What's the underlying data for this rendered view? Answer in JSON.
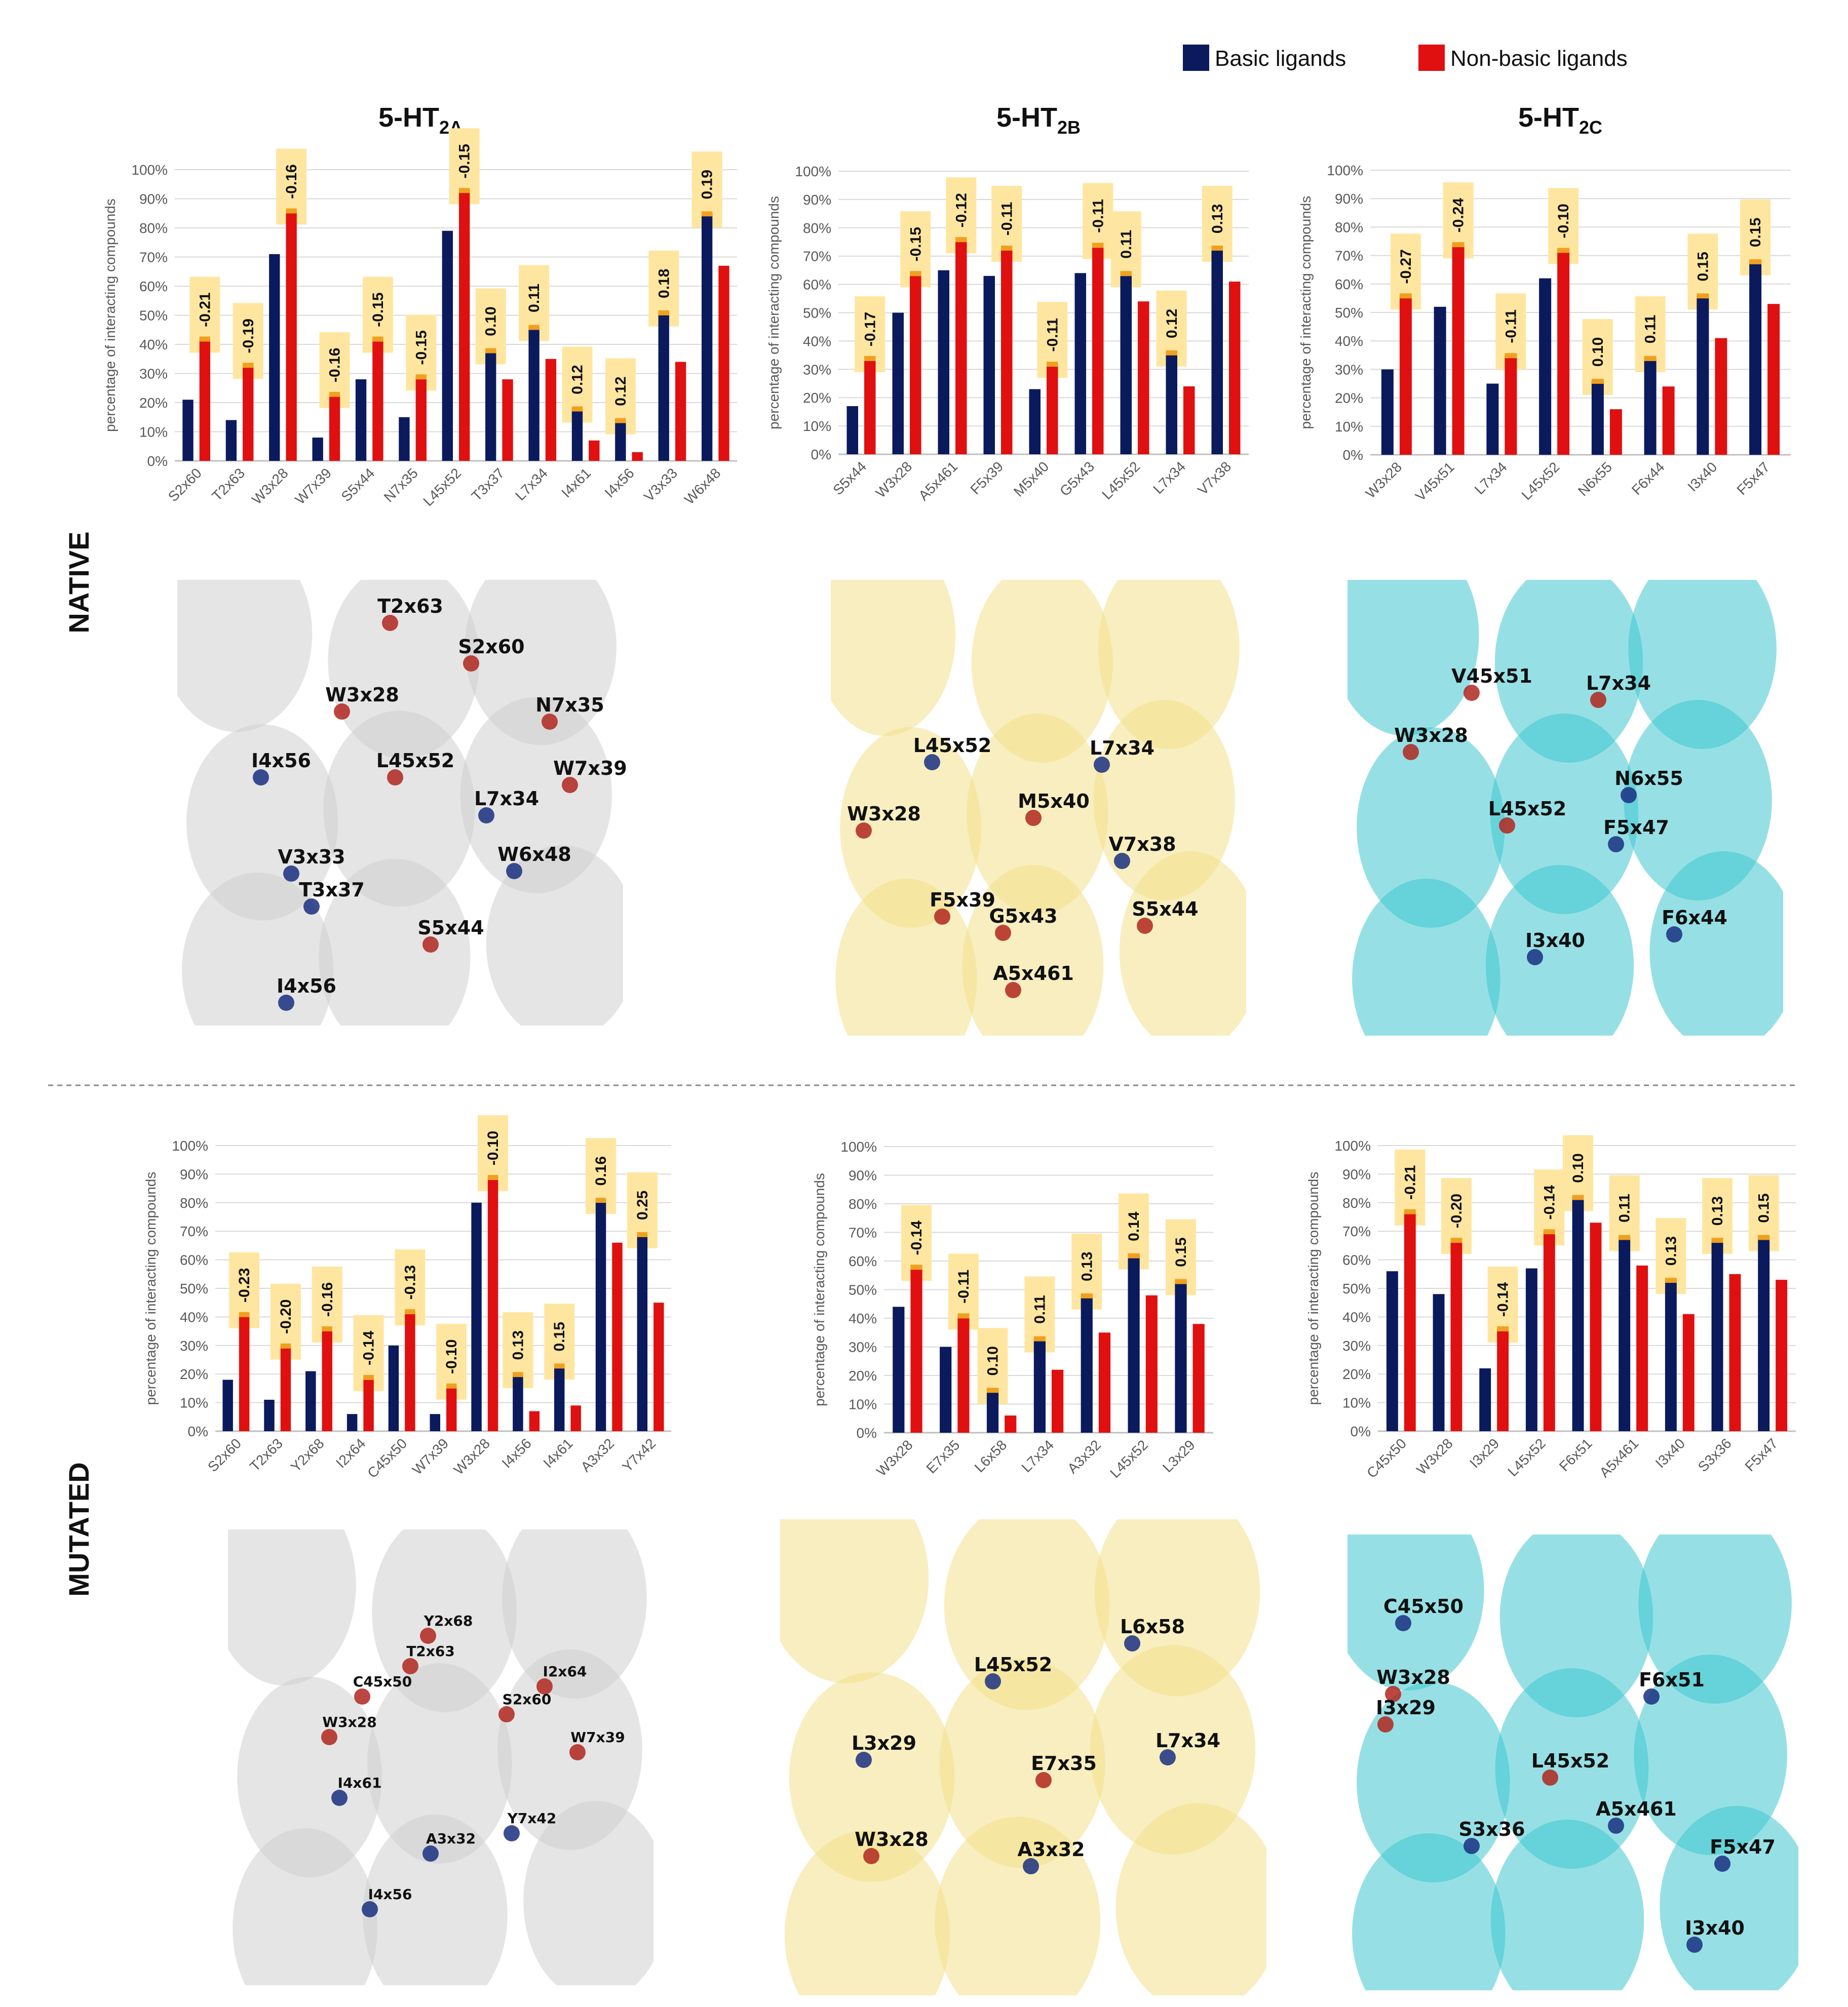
{
  "legend": {
    "basic": {
      "label": "Basic ligands",
      "color": "#0a1a5c"
    },
    "nonbasic": {
      "label": "Non-basic ligands",
      "color": "#e01010"
    }
  },
  "colors": {
    "label_box": "#ffe6a0",
    "cap": "#f0a020",
    "axis": "#bfbfbf",
    "grid": "#d9d9d9"
  },
  "row_labels": {
    "native": "NATIVE",
    "mutated": "MUTATED"
  },
  "columns": [
    {
      "title_main": "5-HT",
      "title_sub": "2A"
    },
    {
      "title_main": "5-HT",
      "title_sub": "2B"
    },
    {
      "title_main": "5-HT",
      "title_sub": "2C"
    }
  ],
  "chart_data": [
    {
      "type": "bar",
      "panel": "5-HT2A native",
      "ylabel": "percentage of interacting compounds",
      "ylim": [
        0,
        100
      ],
      "yticks": [
        "0%",
        "10%",
        "20%",
        "30%",
        "40%",
        "50%",
        "60%",
        "70%",
        "80%",
        "90%",
        "100%"
      ],
      "categories": [
        "S2x60",
        "T2x63",
        "W3x28",
        "W7x39",
        "S5x44",
        "N7x35",
        "L45x52",
        "T3x37",
        "L7x34",
        "I4x61",
        "I4x56",
        "V3x33",
        "W6x48"
      ],
      "series": [
        {
          "name": "Basic ligands",
          "values": [
            21,
            14,
            71,
            8,
            28,
            15,
            79,
            38,
            46,
            18,
            14,
            51,
            85
          ]
        },
        {
          "name": "Non-basic ligands",
          "values": [
            42,
            33,
            86,
            23,
            42,
            29,
            93,
            28,
            35,
            7,
            3,
            34,
            67
          ]
        }
      ],
      "labels": [
        "-0.21",
        "-0.19",
        "-0.16",
        "-0.16",
        "-0.15",
        "-0.15",
        "-0.15",
        "0.10",
        "0.11",
        "0.12",
        "0.12",
        "0.18",
        "0.19"
      ]
    },
    {
      "type": "bar",
      "panel": "5-HT2B native",
      "ylabel": "percentage of interacting compounds",
      "ylim": [
        0,
        100
      ],
      "yticks": [
        "0%",
        "10%",
        "20%",
        "30%",
        "40%",
        "50%",
        "60%",
        "70%",
        "80%",
        "90%",
        "100%"
      ],
      "categories": [
        "S5x44",
        "W3x28",
        "A5x461",
        "F5x39",
        "M5x40",
        "G5x43",
        "L45x52",
        "L7x34",
        "V7x38"
      ],
      "series": [
        {
          "name": "Basic ligands",
          "values": [
            17,
            50,
            65,
            63,
            23,
            64,
            64,
            36,
            73
          ]
        },
        {
          "name": "Non-basic ligands",
          "values": [
            34,
            64,
            76,
            73,
            32,
            74,
            54,
            24,
            61
          ]
        }
      ],
      "labels": [
        "-0.17",
        "-0.15",
        "-0.12",
        "-0.11",
        "-0.11",
        "-0.11",
        "0.11",
        "0.12",
        "0.13"
      ]
    },
    {
      "type": "bar",
      "panel": "5-HT2C native",
      "ylabel": "percentage of interacting compounds",
      "ylim": [
        0,
        100
      ],
      "yticks": [
        "0%",
        "10%",
        "20%",
        "30%",
        "40%",
        "50%",
        "60%",
        "70%",
        "80%",
        "90%",
        "100%"
      ],
      "categories": [
        "W3x28",
        "V45x51",
        "L7x34",
        "L45x52",
        "N6x55",
        "F6x44",
        "I3x40",
        "F5x47"
      ],
      "series": [
        {
          "name": "Basic ligands",
          "values": [
            30,
            52,
            25,
            62,
            26,
            34,
            56,
            68
          ]
        },
        {
          "name": "Non-basic ligands",
          "values": [
            56,
            74,
            35,
            72,
            16,
            24,
            41,
            53
          ]
        }
      ],
      "labels": [
        "-0.27",
        "-0.24",
        "-0.11",
        "-0.10",
        "0.10",
        "0.11",
        "0.15",
        "0.15"
      ]
    },
    {
      "type": "bar",
      "panel": "5-HT2A mutated",
      "ylabel": "percentage of interacting compounds",
      "ylim": [
        0,
        100
      ],
      "yticks": [
        "0%",
        "10%",
        "20%",
        "30%",
        "40%",
        "50%",
        "60%",
        "70%",
        "80%",
        "90%",
        "100%"
      ],
      "categories": [
        "S2x60",
        "T2x63",
        "Y2x68",
        "I2x64",
        "C45x50",
        "W7x39",
        "W3x28",
        "I4x56",
        "I4x61",
        "A3x32",
        "Y7x42"
      ],
      "series": [
        {
          "name": "Basic ligands",
          "values": [
            18,
            11,
            21,
            6,
            30,
            6,
            80,
            20,
            23,
            81,
            69
          ]
        },
        {
          "name": "Non-basic ligands",
          "values": [
            41,
            30,
            36,
            19,
            42,
            16,
            89,
            7,
            9,
            66,
            45
          ]
        }
      ],
      "labels": [
        "-0.23",
        "-0.20",
        "-0.16",
        "-0.14",
        "-0.13",
        "-0.10",
        "-0.10",
        "0.13",
        "0.15",
        "0.16",
        "0.25"
      ]
    },
    {
      "type": "bar",
      "panel": "5-HT2B mutated",
      "ylabel": "percentage of interacting compounds",
      "ylim": [
        0,
        100
      ],
      "yticks": [
        "0%",
        "10%",
        "20%",
        "30%",
        "40%",
        "50%",
        "60%",
        "70%",
        "80%",
        "90%",
        "100%"
      ],
      "categories": [
        "W3x28",
        "E7x35",
        "L6x58",
        "L7x34",
        "A3x32",
        "L45x52",
        "L3x29"
      ],
      "series": [
        {
          "name": "Basic ligands",
          "values": [
            44,
            30,
            15,
            33,
            48,
            62,
            53
          ]
        },
        {
          "name": "Non-basic ligands",
          "values": [
            58,
            41,
            6,
            22,
            35,
            48,
            38
          ]
        }
      ],
      "labels": [
        "-0.14",
        "-0.11",
        "0.10",
        "0.11",
        "0.13",
        "0.14",
        "0.15"
      ]
    },
    {
      "type": "bar",
      "panel": "5-HT2C mutated",
      "ylabel": "percentage of interacting compounds",
      "ylim": [
        0,
        100
      ],
      "yticks": [
        "0%",
        "10%",
        "20%",
        "30%",
        "40%",
        "50%",
        "60%",
        "70%",
        "80%",
        "90%",
        "100%"
      ],
      "categories": [
        "C45x50",
        "W3x28",
        "I3x29",
        "L45x52",
        "F6x51",
        "A5x461",
        "I3x40",
        "S3x36",
        "F5x47"
      ],
      "series": [
        {
          "name": "Basic ligands",
          "values": [
            56,
            48,
            22,
            57,
            82,
            68,
            53,
            67,
            68
          ]
        },
        {
          "name": "Non-basic ligands",
          "values": [
            77,
            67,
            36,
            70,
            73,
            58,
            41,
            55,
            53
          ]
        }
      ],
      "labels": [
        "-0.21",
        "-0.20",
        "-0.14",
        "-0.14",
        "0.10",
        "0.11",
        "0.13",
        "0.13",
        "0.15"
      ]
    }
  ],
  "structures": [
    {
      "panel": "5-HT2A native",
      "bg": "#cfcfcf",
      "residues": [
        {
          "label": "T2x63",
          "c": "r"
        },
        {
          "label": "S2x60",
          "c": "r"
        },
        {
          "label": "W3x28",
          "c": "r"
        },
        {
          "label": "N7x35",
          "c": "r"
        },
        {
          "label": "I4x56",
          "c": "b"
        },
        {
          "label": "L45x52",
          "c": "r"
        },
        {
          "label": "W7x39",
          "c": "r"
        },
        {
          "label": "L7x34",
          "c": "b"
        },
        {
          "label": "V3x33",
          "c": "b"
        },
        {
          "label": "W6x48",
          "c": "b"
        },
        {
          "label": "T3x37",
          "c": "b"
        },
        {
          "label": "S5x44",
          "c": "r"
        },
        {
          "label": "I4x56",
          "c": "b"
        }
      ]
    },
    {
      "panel": "5-HT2B native",
      "bg": "#f3e08a",
      "residues": [
        {
          "label": "L45x52",
          "c": "b"
        },
        {
          "label": "L7x34",
          "c": "b"
        },
        {
          "label": "W3x28",
          "c": "r"
        },
        {
          "label": "M5x40",
          "c": "r"
        },
        {
          "label": "V7x38",
          "c": "b"
        },
        {
          "label": "F5x39",
          "c": "r"
        },
        {
          "label": "G5x43",
          "c": "r"
        },
        {
          "label": "S5x44",
          "c": "r"
        },
        {
          "label": "A5x461",
          "c": "r"
        }
      ]
    },
    {
      "panel": "5-HT2C native",
      "bg": "#3fc6cf",
      "residues": [
        {
          "label": "V45x51",
          "c": "r"
        },
        {
          "label": "L7x34",
          "c": "r"
        },
        {
          "label": "W3x28",
          "c": "r"
        },
        {
          "label": "N6x55",
          "c": "b"
        },
        {
          "label": "L45x52",
          "c": "r"
        },
        {
          "label": "F5x47",
          "c": "b"
        },
        {
          "label": "F6x44",
          "c": "b"
        },
        {
          "label": "I3x40",
          "c": "b"
        }
      ]
    },
    {
      "panel": "5-HT2A mutated",
      "bg": "#cfcfcf",
      "residues": [
        {
          "label": "Y2x68",
          "c": "r"
        },
        {
          "label": "T2x63",
          "c": "r"
        },
        {
          "label": "I2x64",
          "c": "r"
        },
        {
          "label": "C45x50",
          "c": "r"
        },
        {
          "label": "S2x60",
          "c": "r"
        },
        {
          "label": "W3x28",
          "c": "r"
        },
        {
          "label": "W7x39",
          "c": "r"
        },
        {
          "label": "I4x61",
          "c": "b"
        },
        {
          "label": "Y7x42",
          "c": "b"
        },
        {
          "label": "A3x32",
          "c": "b"
        },
        {
          "label": "I4x56",
          "c": "b"
        }
      ]
    },
    {
      "panel": "5-HT2B mutated",
      "bg": "#f3e08a",
      "residues": [
        {
          "label": "L6x58",
          "c": "b"
        },
        {
          "label": "L45x52",
          "c": "b"
        },
        {
          "label": "L3x29",
          "c": "b"
        },
        {
          "label": "L7x34",
          "c": "b"
        },
        {
          "label": "E7x35",
          "c": "r"
        },
        {
          "label": "W3x28",
          "c": "r"
        },
        {
          "label": "A3x32",
          "c": "b"
        }
      ]
    },
    {
      "panel": "5-HT2C mutated",
      "bg": "#3fc6cf",
      "residues": [
        {
          "label": "C45x50",
          "c": "b"
        },
        {
          "label": "W3x28",
          "c": "r"
        },
        {
          "label": "F6x51",
          "c": "b"
        },
        {
          "label": "I3x29",
          "c": "r"
        },
        {
          "label": "L45x52",
          "c": "r"
        },
        {
          "label": "A5x461",
          "c": "b"
        },
        {
          "label": "S3x36",
          "c": "b"
        },
        {
          "label": "F5x47",
          "c": "b"
        },
        {
          "label": "I3x40",
          "c": "b"
        }
      ]
    }
  ]
}
